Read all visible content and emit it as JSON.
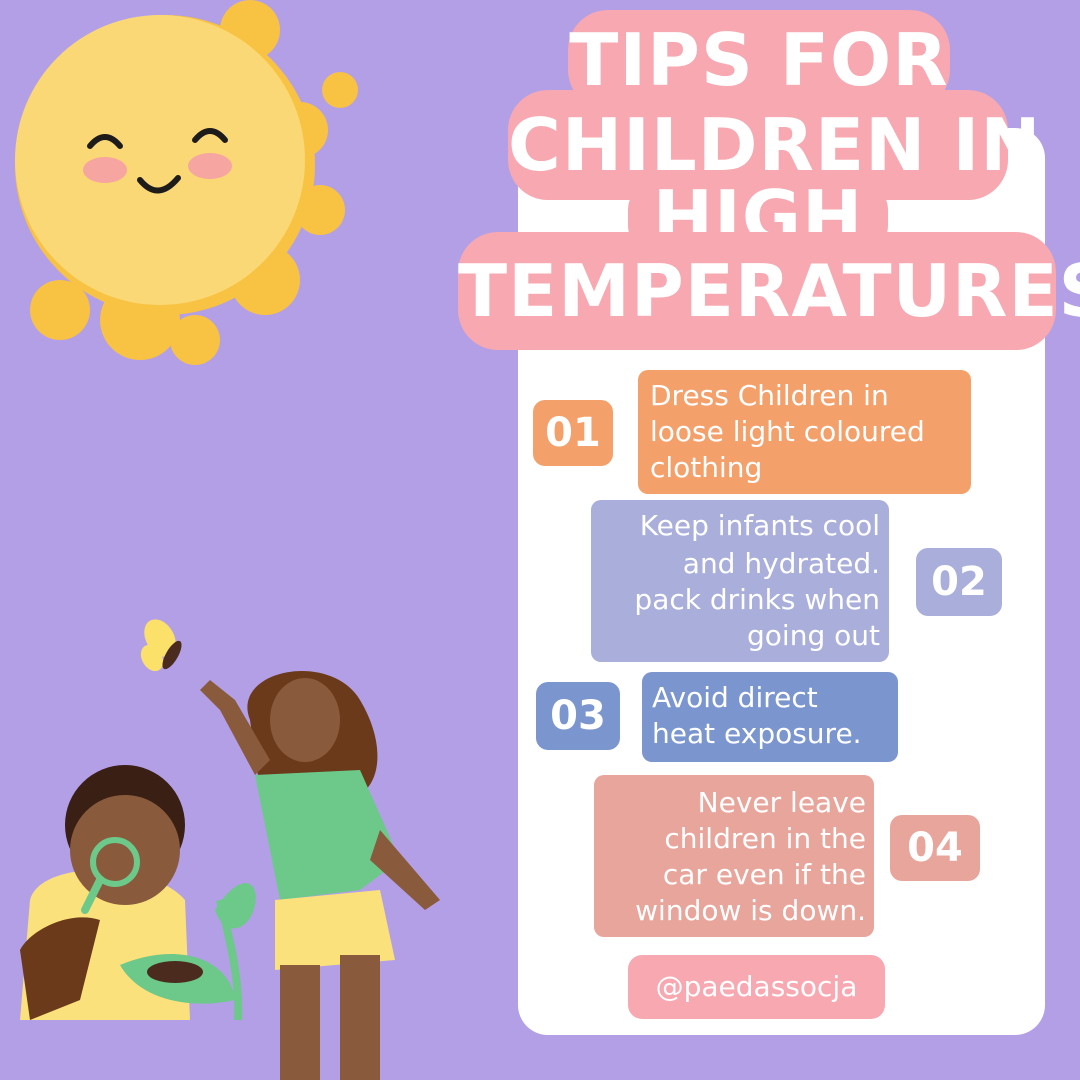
{
  "title": {
    "line1": "TIPS FOR",
    "line2": "CHILDREN IN",
    "line3": "HIGH",
    "line4": "TEMPERATURES"
  },
  "tips": [
    {
      "number": "01",
      "lines": [
        "Dress Children in",
        "loose light coloured",
        "clothing"
      ],
      "color": "#f4a06b"
    },
    {
      "number": "02",
      "lines": [
        "Keep infants cool",
        "and hydrated.",
        "pack drinks when",
        "going out"
      ],
      "color": "#a9aedb"
    },
    {
      "number": "03",
      "lines": [
        "Avoid direct",
        "heat exposure."
      ],
      "color": "#7b95cf"
    },
    {
      "number": "04",
      "lines": [
        "Never leave",
        "children in the",
        "car even if the",
        "window is down."
      ],
      "color": "#e8a59b"
    }
  ],
  "handle": "@paedassocja",
  "colors": {
    "background": "#b39fe6",
    "title": "#f7a8b0",
    "panel": "#ffffff",
    "sun": "#f8c243"
  }
}
